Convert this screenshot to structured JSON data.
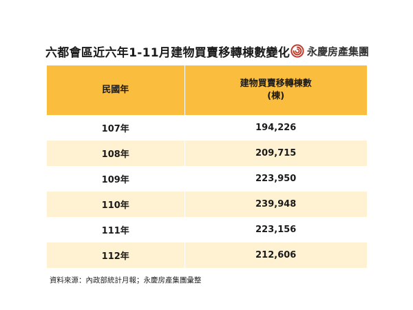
{
  "title": "六都會區近六年1-11月建物買賣移轉棟數變化",
  "brand": {
    "name": "永慶房產集團",
    "logo_icon": "yungching-spiral-logo-icon",
    "logo_color": "#c0392b"
  },
  "colors": {
    "header_bg": "#fbbd3d",
    "stripe_bg": "#fef2d3",
    "row_bg": "#ffffff"
  },
  "chart_data": {
    "type": "table",
    "columns": [
      "民國年",
      "建物買賣移轉棟數\n(棟)"
    ],
    "header_col1": "民國年",
    "header_col2_line1": "建物買賣移轉棟數",
    "header_col2_line2": "(棟)",
    "rows": [
      {
        "year": "107年",
        "value": "194,226"
      },
      {
        "year": "108年",
        "value": "209,715"
      },
      {
        "year": "109年",
        "value": "223,950"
      },
      {
        "year": "110年",
        "value": "239,948"
      },
      {
        "year": "111年",
        "value": "223,156"
      },
      {
        "year": "112年",
        "value": "212,606"
      }
    ]
  },
  "source": "資料來源：內政部統計月報；永慶房產集團彙整"
}
